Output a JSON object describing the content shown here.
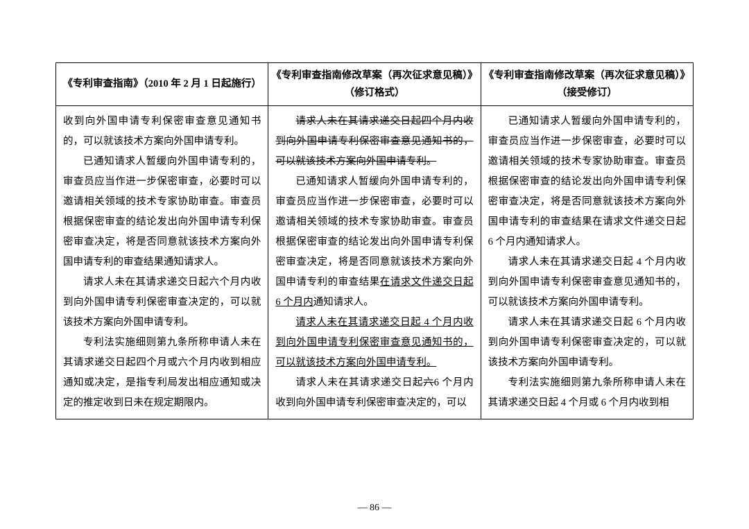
{
  "headers": {
    "col1": "《专利审查指南》（2010 年 2 月 1 日起施行）",
    "col2": "《专利审查指南修改草案（再次征求意见稿）》（修订格式）",
    "col3": "《专利审查指南修改草案（再次征求意见稿）》（接受修订）"
  },
  "col1": {
    "p1a": "收到向外国申请专利保密审查意见通知书的，可以就该技术方案向外国申请专利。",
    "p2": "已通知请求人暂缓向外国申请专利的，审查员应当作进一步保密审查，必要时可以邀请相关领域的技术专家协助审查。审查员根据保密审查的结论发出向外国申请专利保密审查决定，将是否同意就该技术方案向外国申请专利的审查结果通知请求人。",
    "p3": "请求人未在其请求递交日起六个月内收到向外国申请专利保密审查决定的，可以就该技术方案向外国申请专利。",
    "p4": "专利法实施细则第九条所称申请人未在其请求递交日起四个月或六个月内收到相应通知或决定，是指专利局发出相应通知或决定的推定收到日未在规定期限内。"
  },
  "col2": {
    "p1": "请求人未在其请求递交日起四个月内收到向外国申请专利保密审查意见通知书的，可以就该技术方案向外国申请专利。",
    "p2a": "已通知请求人暂缓向外国申请专利的，审查员应当作进一步保密审查，必要时可以邀请相关领域的技术专家协助审查。审查员根据保密审查的结论发出向外国申请专利保密审查决定，将是否同意就该技术方案向外国申请专利的审查结果",
    "p2b": "在请求文件递交日起 6 个月内",
    "p2c": "通知请求人。",
    "p3": "请求人未在其请求递交日起 4 个月内收到向外国申请专利保密审查意见通知书的，可以就该技术方案向外国申请专利。",
    "p4a": "请求人未在其请求递交日起",
    "p4s": "六",
    "p4b": "6 个月内收到向外国申请专利保密审查决定的，可以"
  },
  "col3": {
    "p1": "已通知请求人暂缓向外国申请专利的，审查员应当作进一步保密审查，必要时可以邀请相关领域的技术专家协助审查。审查员根据保密审查的结论发出向外国申请专利保密审查决定，将是否同意就该技术方案向外国申请专利的审查结果在请求文件递交日起 6 个月内通知请求人。",
    "p2": "请求人未在其请求递交日起 4 个月内收到向外国申请专利保密审查意见通知书的，可以就该技术方案向外国申请专利。",
    "p3": "请求人未在其请求递交日起 6 个月内收到向外国申请专利保密审查决定的，可以就该技术方案向外国申请专利。",
    "p4": "专利法实施细则第九条所称申请人未在其请求递交日起 4 个月或 6 个月内收到相"
  },
  "page_number": "— 86 —"
}
